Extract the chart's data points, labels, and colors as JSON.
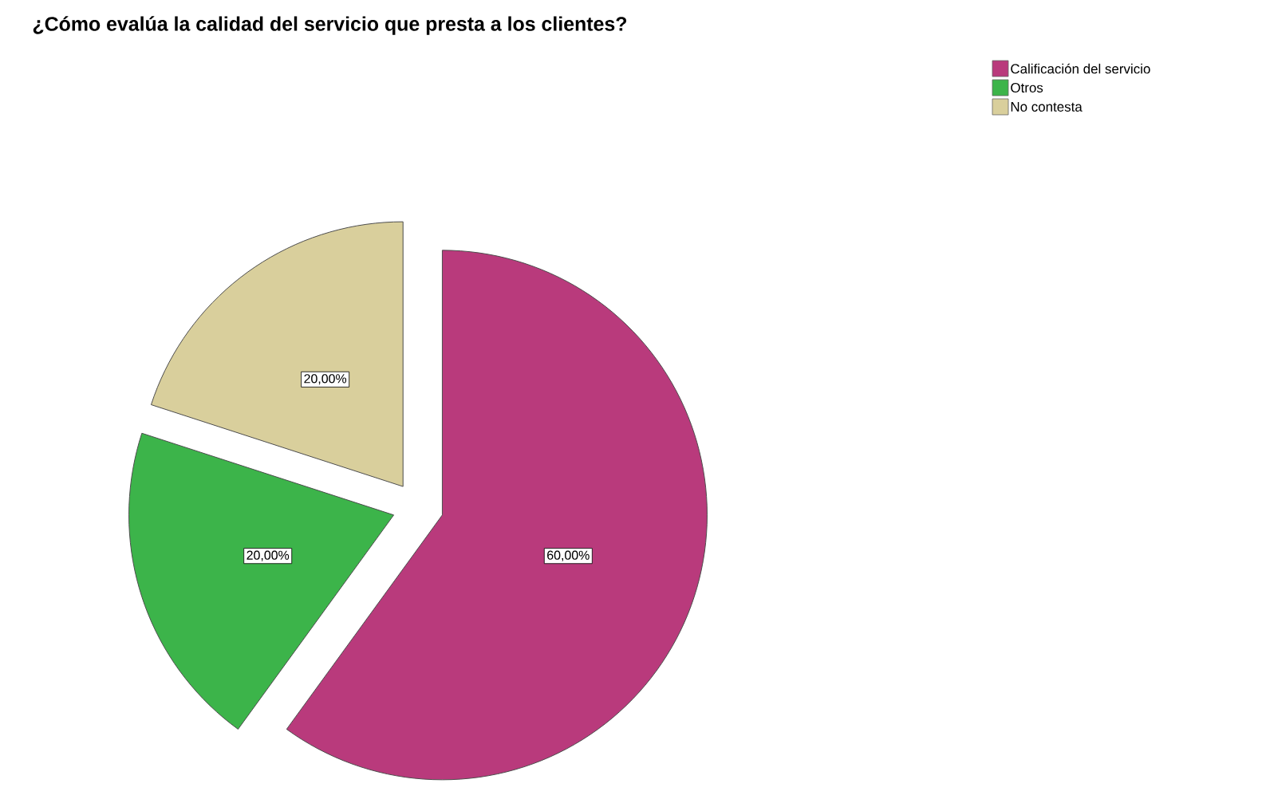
{
  "chart_data": {
    "type": "pie",
    "title": "¿Cómo evalúa la calidad del servicio que presta a los clientes?",
    "categories": [
      "Calificación del servicio",
      "Otros",
      "No contesta"
    ],
    "values": [
      60,
      20,
      20
    ],
    "colors": [
      "#b93a7c",
      "#3cb44a",
      "#d9cf9c"
    ],
    "value_labels": [
      "60,00%",
      "20,00%",
      "20,00%"
    ],
    "legend": "top right"
  }
}
